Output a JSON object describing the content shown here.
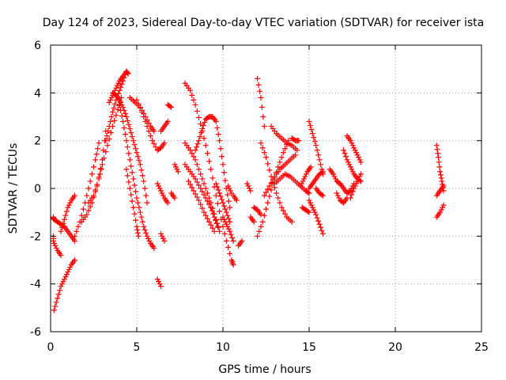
{
  "chart_data": {
    "type": "scatter",
    "title": "Day 124 of 2023, Sidereal Day-to-day VTEC variation (SDTVAR) for receiver ista",
    "xlabel": "GPS time / hours",
    "ylabel": "SDTVAR / TECUs",
    "xlim": [
      0,
      25
    ],
    "ylim": [
      -6,
      6
    ],
    "xticks": [
      0,
      5,
      10,
      15,
      20,
      25
    ],
    "yticks": [
      -6,
      -4,
      -2,
      0,
      2,
      4,
      6
    ],
    "grid": true,
    "marker": "plus",
    "color": "#ff0000",
    "series": [
      {
        "name": "arc1",
        "x": [
          0.0,
          0.2,
          0.4,
          0.6,
          0.8,
          1.0,
          1.2,
          1.4
        ],
        "y": [
          -1.2,
          -1.3,
          -1.4,
          -1.5,
          -1.6,
          -1.8,
          -2.0,
          -2.2
        ]
      },
      {
        "name": "arc2",
        "x": [
          0.0,
          0.2,
          0.4,
          0.6
        ],
        "y": [
          -2.0,
          -2.3,
          -2.6,
          -2.8
        ]
      },
      {
        "name": "arc3",
        "x": [
          0.2,
          0.4,
          0.6,
          0.8,
          1.0,
          1.2,
          1.4
        ],
        "y": [
          -5.1,
          -4.6,
          -4.1,
          -3.8,
          -3.5,
          -3.2,
          -3.0
        ]
      },
      {
        "name": "arc4",
        "x": [
          0.6,
          0.8,
          1.0,
          1.2,
          1.4
        ],
        "y": [
          -1.8,
          -1.3,
          -0.8,
          -0.5,
          -0.3
        ]
      },
      {
        "name": "arc5",
        "x": [
          1.4,
          1.7,
          2.0,
          2.3,
          2.6,
          2.8
        ],
        "y": [
          -2.0,
          -1.4,
          -0.6,
          0.3,
          1.2,
          1.9
        ]
      },
      {
        "name": "arc6",
        "x": [
          1.8,
          2.1,
          2.4,
          2.7,
          3.0,
          3.2
        ],
        "y": [
          -1.4,
          -1.1,
          -0.6,
          0.1,
          1.2,
          2.4
        ]
      },
      {
        "name": "arc7",
        "x": [
          2.2,
          2.5,
          2.8,
          3.0,
          3.3,
          3.6,
          3.9,
          4.1
        ],
        "y": [
          -0.6,
          -0.3,
          0.4,
          1.0,
          1.8,
          2.6,
          3.3,
          3.8
        ]
      },
      {
        "name": "arc8",
        "x": [
          3.2,
          3.4,
          3.6,
          3.8,
          4.0,
          4.2,
          4.4,
          4.5
        ],
        "y": [
          2.0,
          2.6,
          3.2,
          3.7,
          4.1,
          4.5,
          4.9,
          4.8
        ]
      },
      {
        "name": "arc9",
        "x": [
          3.4,
          3.6,
          3.8,
          4.0,
          4.2,
          4.4
        ],
        "y": [
          3.6,
          3.9,
          4.2,
          4.5,
          4.7,
          4.9
        ]
      },
      {
        "name": "arc10",
        "x": [
          3.6,
          3.8,
          4.0,
          4.2,
          4.4,
          4.6,
          4.8,
          5.0,
          5.2,
          5.4,
          5.6
        ],
        "y": [
          4.0,
          3.9,
          3.7,
          3.4,
          3.0,
          2.5,
          2.0,
          1.5,
          1.0,
          0.3,
          -0.6
        ]
      },
      {
        "name": "arc11",
        "x": [
          4.0,
          4.2,
          4.4,
          4.6,
          4.8,
          5.0,
          5.2,
          5.4,
          5.6,
          5.8,
          6.0
        ],
        "y": [
          3.5,
          2.8,
          2.0,
          1.2,
          0.4,
          -0.4,
          -1.0,
          -1.6,
          -2.0,
          -2.3,
          -2.5
        ]
      },
      {
        "name": "arc12",
        "x": [
          4.4,
          4.6,
          4.8,
          5.0,
          5.1
        ],
        "y": [
          0.8,
          0.0,
          -0.8,
          -1.6,
          -2.0
        ]
      },
      {
        "name": "arc13",
        "x": [
          4.6,
          4.9,
          5.2,
          5.5,
          5.8,
          6.0
        ],
        "y": [
          3.8,
          3.6,
          3.4,
          3.0,
          2.6,
          2.4
        ]
      },
      {
        "name": "arc14",
        "x": [
          5.0,
          5.3,
          5.6,
          5.9,
          6.2,
          6.4,
          6.6
        ],
        "y": [
          3.7,
          3.2,
          2.6,
          2.0,
          1.6,
          1.7,
          1.9
        ]
      },
      {
        "name": "arc15",
        "x": [
          6.2,
          6.4,
          6.6,
          6.8
        ],
        "y": [
          0.2,
          -0.1,
          -0.4,
          -0.6
        ]
      },
      {
        "name": "arc16",
        "x": [
          6.4,
          6.6
        ],
        "y": [
          -1.9,
          -2.2
        ]
      },
      {
        "name": "arc17",
        "x": [
          6.2,
          6.4
        ],
        "y": [
          -3.8,
          -4.1
        ]
      },
      {
        "name": "arc18",
        "x": [
          6.4,
          6.6,
          6.8
        ],
        "y": [
          2.4,
          2.6,
          2.8
        ]
      },
      {
        "name": "arc19",
        "x": [
          6.8,
          7.0
        ],
        "y": [
          3.5,
          3.4
        ]
      },
      {
        "name": "arc20",
        "x": [
          7.2,
          7.4
        ],
        "y": [
          1.0,
          0.7
        ]
      },
      {
        "name": "arc21",
        "x": [
          7.0,
          7.2
        ],
        "y": [
          -0.2,
          -0.4
        ]
      },
      {
        "name": "arc22",
        "x": [
          7.8,
          8.1,
          8.4,
          8.7,
          9.0,
          9.3,
          9.6,
          9.9,
          10.2,
          10.5,
          10.6
        ],
        "y": [
          4.4,
          4.1,
          3.5,
          2.7,
          1.8,
          0.8,
          -0.3,
          -1.3,
          -2.2,
          -3.0,
          -3.2
        ]
      },
      {
        "name": "arc23",
        "x": [
          7.8,
          8.1,
          8.4,
          8.7,
          9.0,
          9.3,
          9.6,
          9.8
        ],
        "y": [
          1.9,
          1.6,
          1.2,
          0.6,
          0.0,
          -0.6,
          -1.3,
          -1.8
        ]
      },
      {
        "name": "arc24",
        "x": [
          7.8,
          8.1,
          8.4,
          8.7,
          9.0,
          9.3,
          9.5,
          9.7
        ],
        "y": [
          1.0,
          0.7,
          0.4,
          0.0,
          -0.4,
          -0.8,
          -1.2,
          -1.6
        ]
      },
      {
        "name": "arc25",
        "x": [
          8.0,
          8.3,
          8.6,
          8.9,
          9.2,
          9.5
        ],
        "y": [
          0.3,
          -0.1,
          -0.5,
          -1.0,
          -1.4,
          -1.8
        ]
      },
      {
        "name": "arc26",
        "x": [
          8.4,
          8.6,
          8.8,
          9.0,
          9.2,
          9.4,
          9.6,
          9.8,
          10.0,
          10.2,
          10.4
        ],
        "y": [
          1.6,
          2.0,
          2.5,
          2.9,
          3.0,
          3.0,
          2.8,
          2.0,
          1.0,
          0.0,
          -0.8
        ]
      },
      {
        "name": "arc27",
        "x": [
          9.6,
          9.8,
          10.0,
          10.2,
          10.4
        ],
        "y": [
          0.2,
          -0.2,
          -0.6,
          -1.0,
          -1.4
        ]
      },
      {
        "name": "arc28",
        "x": [
          10.0,
          10.2,
          10.4,
          10.6
        ],
        "y": [
          -1.2,
          -1.5,
          -1.8,
          -2.2
        ]
      },
      {
        "name": "arc29",
        "x": [
          10.3,
          10.5
        ],
        "y": [
          0.1,
          -0.2
        ]
      },
      {
        "name": "arc30",
        "x": [
          10.6,
          10.8
        ],
        "y": [
          -0.3,
          -0.5
        ]
      },
      {
        "name": "arc31",
        "x": [
          10.9,
          11.1
        ],
        "y": [
          -2.4,
          -2.2
        ]
      },
      {
        "name": "arc32",
        "x": [
          11.4,
          11.6
        ],
        "y": [
          0.2,
          -0.1
        ]
      },
      {
        "name": "arc33",
        "x": [
          11.6,
          11.8
        ],
        "y": [
          -1.2,
          -1.4
        ]
      },
      {
        "name": "arc34",
        "x": [
          11.8,
          12.0,
          12.2
        ],
        "y": [
          -0.8,
          -0.9,
          -1.1
        ]
      },
      {
        "name": "arc35",
        "x": [
          12.0,
          12.2,
          12.4
        ],
        "y": [
          4.6,
          3.8,
          2.6
        ]
      },
      {
        "name": "arc36",
        "x": [
          12.2,
          12.5,
          12.8,
          13.1,
          13.4,
          13.7,
          14.0
        ],
        "y": [
          1.9,
          1.3,
          0.5,
          -0.2,
          -0.8,
          -1.2,
          -1.4
        ]
      },
      {
        "name": "arc37",
        "x": [
          12.0,
          12.3,
          12.6,
          12.9,
          13.2,
          13.5,
          13.8
        ],
        "y": [
          -2.0,
          -1.4,
          -0.6,
          0.2,
          0.9,
          1.5,
          2.0
        ]
      },
      {
        "name": "arc38",
        "x": [
          12.4,
          12.7,
          13.0,
          13.3,
          13.6,
          13.9,
          14.2
        ],
        "y": [
          -0.3,
          0.1,
          0.5,
          0.8,
          1.0,
          1.2,
          1.4
        ]
      },
      {
        "name": "arc39",
        "x": [
          12.8,
          13.1,
          13.4,
          13.7,
          14.0,
          14.3
        ],
        "y": [
          2.6,
          2.3,
          2.1,
          1.9,
          1.8,
          1.6
        ]
      },
      {
        "name": "arc40",
        "x": [
          13.0,
          13.3,
          13.6,
          13.9,
          14.2,
          14.5,
          14.8,
          15.0
        ],
        "y": [
          0.2,
          0.4,
          0.6,
          0.5,
          0.3,
          0.1,
          -0.1,
          -0.2
        ]
      },
      {
        "name": "arc41",
        "x": [
          14.0,
          14.2,
          14.4
        ],
        "y": [
          2.1,
          2.0,
          2.0
        ]
      },
      {
        "name": "arc42",
        "x": [
          14.5,
          14.7,
          14.9,
          15.1
        ],
        "y": [
          0.1,
          0.4,
          0.7,
          0.9
        ]
      },
      {
        "name": "arc43",
        "x": [
          14.6,
          14.8,
          15.0
        ],
        "y": [
          -0.8,
          -0.9,
          -1.0
        ]
      },
      {
        "name": "arc44",
        "x": [
          15.0,
          15.2,
          15.4,
          15.6,
          15.8
        ],
        "y": [
          2.8,
          2.3,
          1.8,
          1.2,
          0.6
        ]
      },
      {
        "name": "arc45",
        "x": [
          15.0,
          15.2,
          15.4,
          15.6,
          15.8
        ],
        "y": [
          -0.5,
          -0.8,
          -1.1,
          -1.5,
          -1.9
        ]
      },
      {
        "name": "arc46",
        "x": [
          15.0,
          15.2,
          15.4,
          15.6,
          15.8
        ],
        "y": [
          0.0,
          0.2,
          0.4,
          0.6,
          0.7
        ]
      },
      {
        "name": "arc47",
        "x": [
          15.4,
          15.6,
          15.8
        ],
        "y": [
          0.0,
          -0.2,
          -0.3
        ]
      },
      {
        "name": "arc48",
        "x": [
          16.2,
          16.4,
          16.6,
          16.8
        ],
        "y": [
          0.8,
          0.6,
          0.3,
          0.2
        ]
      },
      {
        "name": "arc49",
        "x": [
          16.6,
          16.8,
          17.0,
          17.2
        ],
        "y": [
          -0.2,
          -0.5,
          -0.6,
          -0.4
        ]
      },
      {
        "name": "arc50",
        "x": [
          16.8,
          17.0,
          17.2,
          17.4,
          17.6
        ],
        "y": [
          0.2,
          0.0,
          -0.2,
          -0.1,
          0.2
        ]
      },
      {
        "name": "arc51",
        "x": [
          17.0,
          17.2,
          17.4,
          17.6,
          17.8,
          18.0
        ],
        "y": [
          1.6,
          1.2,
          0.9,
          0.6,
          0.4,
          0.3
        ]
      },
      {
        "name": "arc52",
        "x": [
          17.2,
          17.4,
          17.6,
          17.8,
          18.0
        ],
        "y": [
          2.2,
          2.0,
          1.7,
          1.4,
          1.1
        ]
      },
      {
        "name": "arc53",
        "x": [
          17.4,
          17.6,
          17.8,
          18.0
        ],
        "y": [
          -0.4,
          0.0,
          0.3,
          0.6
        ]
      },
      {
        "name": "arc54",
        "x": [
          22.4,
          22.5,
          22.6,
          22.7,
          22.8
        ],
        "y": [
          1.8,
          1.3,
          0.7,
          0.3,
          -0.1
        ]
      },
      {
        "name": "arc55",
        "x": [
          22.4,
          22.6,
          22.8
        ],
        "y": [
          -0.3,
          -0.1,
          0.1
        ]
      },
      {
        "name": "arc56",
        "x": [
          22.4,
          22.6,
          22.8
        ],
        "y": [
          -1.2,
          -1.0,
          -0.7
        ]
      }
    ]
  }
}
